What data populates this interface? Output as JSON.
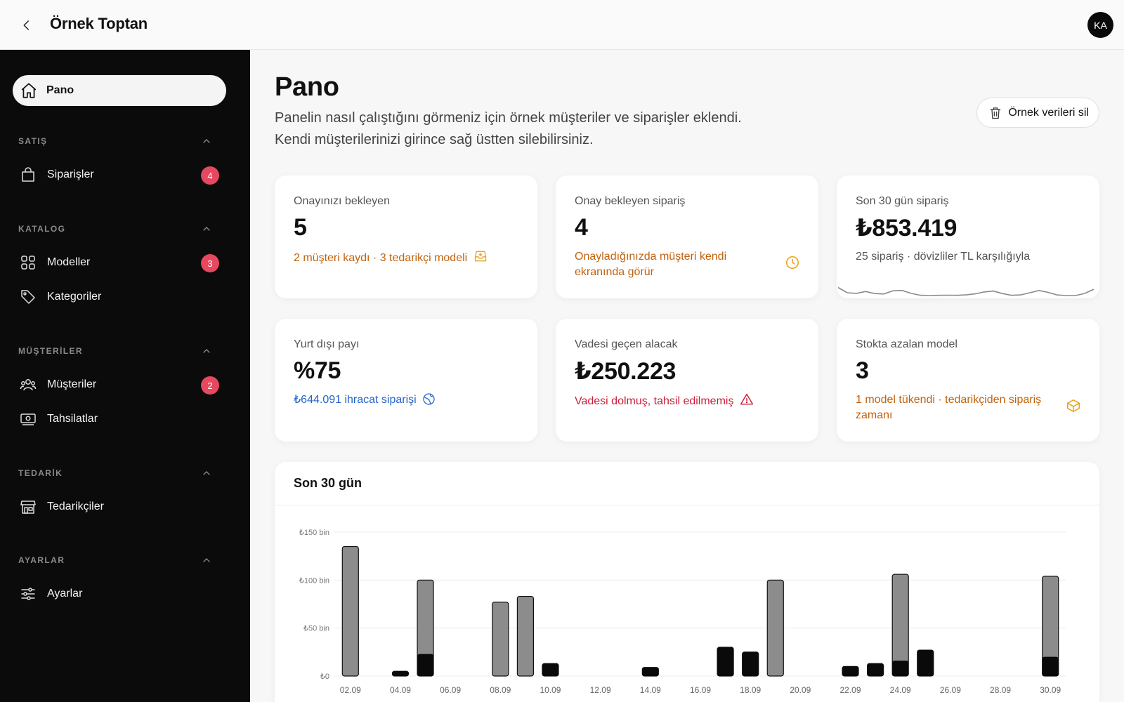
{
  "app": {
    "title": "Örnek Toptan",
    "avatar_initials": "KA"
  },
  "sidebar": {
    "home": {
      "label": "Pano",
      "icon": "home-icon"
    },
    "sections": [
      {
        "title": "SATIŞ",
        "items": [
          {
            "label": "Siparişler",
            "icon": "bag-icon",
            "badge": "4"
          }
        ]
      },
      {
        "title": "KATALOG",
        "items": [
          {
            "label": "Modeller",
            "icon": "grid-icon",
            "badge": "3"
          },
          {
            "label": "Kategoriler",
            "icon": "tag-icon"
          }
        ]
      },
      {
        "title": "MÜŞTERİLER",
        "items": [
          {
            "label": "Müşteriler",
            "icon": "users-icon",
            "badge": "2"
          },
          {
            "label": "Tahsilatlar",
            "icon": "cash-icon"
          }
        ]
      },
      {
        "title": "TEDARİK",
        "items": [
          {
            "label": "Tedarikçiler",
            "icon": "store-icon"
          }
        ]
      },
      {
        "title": "AYARLAR",
        "items": [
          {
            "label": "Ayarlar",
            "icon": "sliders-icon"
          }
        ]
      }
    ]
  },
  "main": {
    "title": "Pano",
    "desc_line1": "Panelin nasıl çalıştığını görmeniz için örnek müşteriler ve siparişler eklendi.",
    "desc_line2": "Kendi müşterilerinizi girince sağ üstten silebilirsiniz.",
    "clear_button": "Örnek verileri sil"
  },
  "cards": [
    {
      "title": "Onayınızı bekleyen",
      "value": "5",
      "sub": "2 müşteri kaydı · 3 tedarikçi modeli",
      "icon": "inbox-icon",
      "tone": "orange"
    },
    {
      "title": "Onay bekleyen sipariş",
      "value": "4",
      "sub": "Onayladığınızda müşteri kendi ekranında görür",
      "icon": "clock-icon",
      "tone": "orange"
    },
    {
      "title": "Son 30 gün sipariş",
      "value": "₺853.419",
      "sub": "25 sipariş · dövizliler TL karşılığıyla",
      "icon": "",
      "tone": "gray"
    },
    {
      "title": "Yurt dışı payı",
      "value": "%75",
      "sub": "₺644.091 ihracat siparişi",
      "icon": "globe-icon",
      "tone": "blue"
    },
    {
      "title": "Vadesi geçen alacak",
      "value": "₺250.223",
      "sub": "Vadesi dolmuş, tahsil edilmemiş",
      "icon": "warning-icon",
      "tone": "red"
    },
    {
      "title": "Stokta azalan model",
      "value": "3",
      "sub": "1 model tükendi · tedarikçiden sipariş zamanı",
      "icon": "box-icon",
      "tone": "orange"
    }
  ],
  "colors": {
    "orange": "#c2620e",
    "blue": "#2563c9",
    "red": "#c81e3a",
    "badge": "#e5485f",
    "bar_total": "#8c8c8c",
    "bar_part": "#0a0a0a"
  },
  "chart_data": {
    "type": "bar",
    "title": "Son 30 gün",
    "yticks": [
      "₺150 bin",
      "₺100 bin",
      "₺50 bin",
      "₺0"
    ],
    "ylim": [
      0,
      150
    ],
    "x_tick_labels": [
      "02.09",
      "04.09",
      "06.09",
      "08.09",
      "10.09",
      "12.09",
      "14.09",
      "16.09",
      "18.09",
      "20.09",
      "22.09",
      "24.09",
      "26.09",
      "28.09",
      "30.09"
    ],
    "categories": [
      "02.09",
      "03.09",
      "04.09",
      "05.09",
      "06.09",
      "07.09",
      "08.09",
      "09.09",
      "10.09",
      "11.09",
      "12.09",
      "13.09",
      "14.09",
      "15.09",
      "16.09",
      "17.09",
      "18.09",
      "19.09",
      "20.09",
      "21.09",
      "22.09",
      "23.09",
      "24.09",
      "25.09",
      "26.09",
      "27.09",
      "28.09",
      "29.09",
      "30.09"
    ],
    "series": [
      {
        "values": [
          135,
          0,
          5,
          100,
          0,
          0,
          77,
          83,
          13,
          0,
          0,
          0,
          9,
          0,
          0,
          30,
          25,
          100,
          0,
          0,
          10,
          13,
          106,
          27,
          0,
          0,
          0,
          0,
          104
        ]
      },
      {
        "values": [
          0,
          0,
          5,
          23,
          0,
          0,
          0,
          0,
          13,
          0,
          0,
          0,
          9,
          0,
          0,
          30,
          25,
          0,
          0,
          0,
          10,
          13,
          16,
          27,
          0,
          0,
          0,
          0,
          20
        ]
      }
    ],
    "grid": true,
    "legend": "none"
  }
}
